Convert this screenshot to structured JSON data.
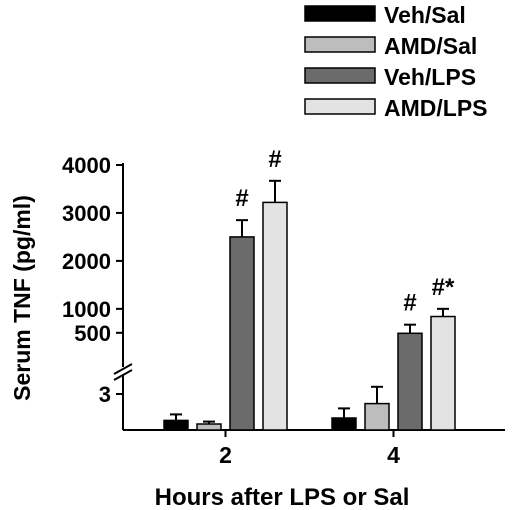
{
  "chart_data": {
    "type": "bar",
    "xlabel": "Hours after LPS or Sal",
    "ylabel": "Serum TNF (pg/ml)",
    "categories": [
      "2",
      "4"
    ],
    "y_axis": {
      "broken": true,
      "lower_segment": {
        "range": [
          0,
          4
        ],
        "ticks": [
          "3"
        ]
      },
      "upper_segment": {
        "range": [
          100,
          4000
        ],
        "ticks": [
          "500",
          "1000",
          "2000",
          "3000",
          "4000"
        ]
      }
    },
    "legend_position": "top-right",
    "series": [
      {
        "name": "Veh/Sal",
        "color": "#000000",
        "values": [
          0.8,
          1.0
        ],
        "errors": [
          0.5,
          0.8
        ]
      },
      {
        "name": "AMD/Sal",
        "color": "#bdbdbd",
        "values": [
          0.5,
          2.2
        ],
        "errors": [
          0.2,
          1.4
        ]
      },
      {
        "name": "Veh/LPS",
        "color": "#6b6b6b",
        "values": [
          2500,
          490
        ],
        "errors": [
          350,
          180
        ]
      },
      {
        "name": "AMD/LPS",
        "color": "#e3e3e3",
        "values": [
          3220,
          840
        ],
        "errors": [
          450,
          160
        ]
      }
    ],
    "annotations": [
      {
        "category": "2",
        "series": "Veh/LPS",
        "text": "#"
      },
      {
        "category": "2",
        "series": "AMD/LPS",
        "text": "#"
      },
      {
        "category": "4",
        "series": "Veh/LPS",
        "text": "#"
      },
      {
        "category": "4",
        "series": "AMD/LPS",
        "text": "#*"
      }
    ]
  }
}
